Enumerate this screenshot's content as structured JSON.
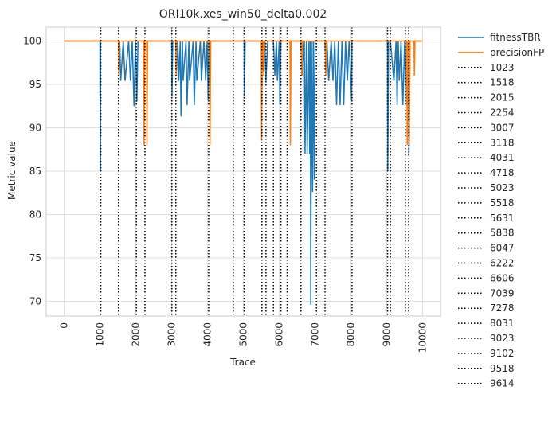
{
  "chart_data": {
    "type": "line",
    "title": "ORI10k.xes_win50_delta0.002",
    "xlabel": "Trace",
    "ylabel": "Metric value",
    "xlim": [
      -500,
      10500
    ],
    "ylim": [
      68.3,
      101.6
    ],
    "xticks": [
      0,
      1000,
      2000,
      3000,
      4000,
      5000,
      6000,
      7000,
      8000,
      9000,
      10000
    ],
    "xtick_labels": [
      "0",
      "1000",
      "2000",
      "3000",
      "4000",
      "5000",
      "6000",
      "7000",
      "8000",
      "9000",
      "10000"
    ],
    "yticks": [
      70,
      75,
      80,
      85,
      90,
      95,
      100
    ],
    "ytick_labels": [
      "70",
      "75",
      "80",
      "85",
      "90",
      "95",
      "100"
    ],
    "grid": true,
    "legend_position": "outside-right",
    "series": [
      {
        "name": "fitnessTBR",
        "color": "#1f77b4",
        "points": [
          [
            0,
            100
          ],
          [
            1000,
            100
          ],
          [
            1002,
            93.6
          ],
          [
            1008,
            100
          ],
          [
            1012,
            85
          ],
          [
            1018,
            100
          ],
          [
            1518,
            100
          ],
          [
            1530,
            96.5
          ],
          [
            1550,
            100
          ],
          [
            1580,
            95.4
          ],
          [
            1650,
            100
          ],
          [
            1700,
            95.4
          ],
          [
            1800,
            100
          ],
          [
            1850,
            95.4
          ],
          [
            1900,
            100
          ],
          [
            1950,
            92.5
          ],
          [
            1990,
            100
          ],
          [
            2030,
            93
          ],
          [
            2060,
            100
          ],
          [
            3000,
            100
          ],
          [
            3010,
            93.6
          ],
          [
            3030,
            100
          ],
          [
            3118,
            100
          ],
          [
            3130,
            96
          ],
          [
            3170,
            100
          ],
          [
            3200,
            95.4
          ],
          [
            3240,
            100
          ],
          [
            3260,
            91.3
          ],
          [
            3300,
            100
          ],
          [
            3320,
            95.4
          ],
          [
            3400,
            100
          ],
          [
            3430,
            92.6
          ],
          [
            3480,
            100
          ],
          [
            3500,
            95.4
          ],
          [
            3600,
            100
          ],
          [
            3630,
            92.6
          ],
          [
            3680,
            100
          ],
          [
            3700,
            95.4
          ],
          [
            3800,
            100
          ],
          [
            3830,
            95.4
          ],
          [
            3900,
            100
          ],
          [
            3950,
            95.4
          ],
          [
            3990,
            100
          ],
          [
            4020,
            93.2
          ],
          [
            4040,
            100
          ],
          [
            5023,
            100
          ],
          [
            5030,
            93.6
          ],
          [
            5050,
            100
          ],
          [
            5518,
            100
          ],
          [
            5560,
            96.5
          ],
          [
            5600,
            100
          ],
          [
            5630,
            95.4
          ],
          [
            5680,
            100
          ],
          [
            5838,
            100
          ],
          [
            5880,
            96
          ],
          [
            5920,
            100
          ],
          [
            5950,
            95.4
          ],
          [
            6000,
            100
          ],
          [
            6020,
            92.7
          ],
          [
            6047,
            100
          ],
          [
            6606,
            100
          ],
          [
            6640,
            96
          ],
          [
            6700,
            100
          ],
          [
            6720,
            87
          ],
          [
            6760,
            100
          ],
          [
            6780,
            87
          ],
          [
            6830,
            100
          ],
          [
            6850,
            87
          ],
          [
            6870,
            100
          ],
          [
            6880,
            69.6
          ],
          [
            6900,
            100
          ],
          [
            6930,
            82.6
          ],
          [
            6950,
            100
          ],
          [
            6980,
            84
          ],
          [
            7000,
            100
          ],
          [
            7278,
            100
          ],
          [
            7300,
            96.5
          ],
          [
            7330,
            100
          ],
          [
            7380,
            95.4
          ],
          [
            7450,
            100
          ],
          [
            7500,
            95.4
          ],
          [
            7550,
            100
          ],
          [
            7600,
            92.6
          ],
          [
            7650,
            100
          ],
          [
            7700,
            92.6
          ],
          [
            7750,
            100
          ],
          [
            7800,
            92.6
          ],
          [
            7850,
            100
          ],
          [
            7900,
            95.4
          ],
          [
            7950,
            100
          ],
          [
            8020,
            93.2
          ],
          [
            8031,
            100
          ],
          [
            9023,
            100
          ],
          [
            9030,
            85
          ],
          [
            9050,
            100
          ],
          [
            9102,
            100
          ],
          [
            9200,
            95.4
          ],
          [
            9260,
            100
          ],
          [
            9290,
            92.6
          ],
          [
            9320,
            100
          ],
          [
            9350,
            95.4
          ],
          [
            9400,
            100
          ],
          [
            9450,
            92.6
          ],
          [
            9500,
            100
          ],
          [
            9518,
            100
          ],
          [
            9560,
            92.6
          ],
          [
            9600,
            100
          ],
          [
            9620,
            87
          ],
          [
            9650,
            100
          ],
          [
            10000,
            100
          ]
        ]
      },
      {
        "name": "precisionFP",
        "color": "#ff7f0e",
        "points": [
          [
            0,
            100
          ],
          [
            1518,
            100
          ],
          [
            1525,
            96
          ],
          [
            1540,
            100
          ],
          [
            2220,
            100
          ],
          [
            2230,
            88
          ],
          [
            2250,
            100
          ],
          [
            2300,
            100
          ],
          [
            2310,
            88
          ],
          [
            2330,
            100
          ],
          [
            3118,
            100
          ],
          [
            3125,
            96
          ],
          [
            3140,
            100
          ],
          [
            4060,
            100
          ],
          [
            4070,
            88
          ],
          [
            4090,
            100
          ],
          [
            5500,
            100
          ],
          [
            5510,
            88.5
          ],
          [
            5530,
            100
          ],
          [
            5560,
            100
          ],
          [
            5570,
            96
          ],
          [
            5590,
            100
          ],
          [
            6300,
            100
          ],
          [
            6310,
            88
          ],
          [
            6330,
            100
          ],
          [
            6620,
            100
          ],
          [
            6630,
            96
          ],
          [
            6650,
            100
          ],
          [
            7290,
            100
          ],
          [
            7300,
            96
          ],
          [
            7320,
            100
          ],
          [
            9560,
            100
          ],
          [
            9570,
            88
          ],
          [
            9590,
            100
          ],
          [
            9620,
            100
          ],
          [
            9630,
            88
          ],
          [
            9650,
            100
          ],
          [
            9760,
            100
          ],
          [
            9770,
            96
          ],
          [
            9790,
            100
          ],
          [
            10000,
            100
          ]
        ]
      }
    ],
    "vlines": {
      "color": "#000000",
      "style": "dotted",
      "values": [
        1023,
        1518,
        2015,
        2254,
        3007,
        3118,
        4031,
        4718,
        5023,
        5518,
        5631,
        5838,
        6047,
        6222,
        6606,
        7039,
        7278,
        8031,
        9023,
        9102,
        9518,
        9614
      ],
      "labels": [
        "1023",
        "1518",
        "2015",
        "2254",
        "3007",
        "3118",
        "4031",
        "4718",
        "5023",
        "5518",
        "5631",
        "5838",
        "6047",
        "6222",
        "6606",
        "7039",
        "7278",
        "8031",
        "9023",
        "9102",
        "9518",
        "9614"
      ]
    },
    "style": {
      "grid_color": "#d9d9d9",
      "axes_edge_color": "#cccccc",
      "text_color": "#262626"
    }
  }
}
